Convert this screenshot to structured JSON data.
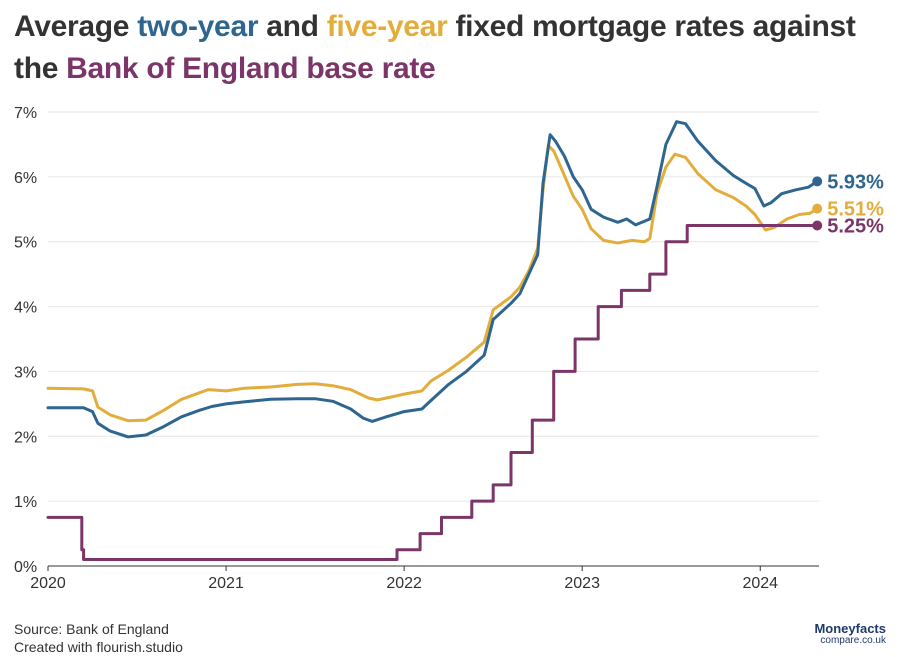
{
  "title": {
    "part1": "Average ",
    "two_year": "two-year",
    "part2": " and ",
    "five_year": "five-year",
    "part3": " fixed mortgage rates against the ",
    "base_rate": "Bank of England base rate"
  },
  "footer": {
    "source": "Source: Bank of England",
    "created": "Created with flourish.studio"
  },
  "logo": {
    "line1": "Moneyfacts",
    "line2": "compare.co.uk"
  },
  "colors": {
    "two_year": "#2e6690",
    "five_year": "#e2ad3c",
    "base_rate": "#7b3568",
    "grid": "#e6e6e6",
    "axis": "#333333"
  },
  "chart_data": {
    "type": "line",
    "xlim": [
      2020.0,
      2024.33
    ],
    "ylim": [
      0,
      7
    ],
    "x_ticks": [
      2020,
      2021,
      2022,
      2023,
      2024
    ],
    "x_tick_labels": [
      "2020",
      "2021",
      "2022",
      "2023",
      "2024"
    ],
    "y_ticks": [
      0,
      1,
      2,
      3,
      4,
      5,
      6,
      7
    ],
    "y_tick_labels": [
      "0%",
      "1%",
      "2%",
      "3%",
      "4%",
      "5%",
      "6%",
      "7%"
    ],
    "grid": "horizontal",
    "series": [
      {
        "key": "five_year",
        "end_label": "5.51%",
        "points": [
          [
            2020.0,
            2.74
          ],
          [
            2020.2,
            2.73
          ],
          [
            2020.25,
            2.7
          ],
          [
            2020.28,
            2.45
          ],
          [
            2020.35,
            2.33
          ],
          [
            2020.45,
            2.24
          ],
          [
            2020.55,
            2.25
          ],
          [
            2020.65,
            2.4
          ],
          [
            2020.75,
            2.57
          ],
          [
            2020.85,
            2.67
          ],
          [
            2020.9,
            2.72
          ],
          [
            2021.0,
            2.7
          ],
          [
            2021.1,
            2.74
          ],
          [
            2021.25,
            2.76
          ],
          [
            2021.4,
            2.8
          ],
          [
            2021.5,
            2.81
          ],
          [
            2021.6,
            2.78
          ],
          [
            2021.7,
            2.72
          ],
          [
            2021.8,
            2.59
          ],
          [
            2021.85,
            2.56
          ],
          [
            2021.95,
            2.62
          ],
          [
            2022.0,
            2.65
          ],
          [
            2022.1,
            2.7
          ],
          [
            2022.15,
            2.85
          ],
          [
            2022.25,
            3.02
          ],
          [
            2022.35,
            3.22
          ],
          [
            2022.45,
            3.45
          ],
          [
            2022.5,
            3.95
          ],
          [
            2022.6,
            4.15
          ],
          [
            2022.65,
            4.3
          ],
          [
            2022.7,
            4.55
          ],
          [
            2022.75,
            4.9
          ],
          [
            2022.78,
            5.8
          ],
          [
            2022.81,
            6.48
          ],
          [
            2022.84,
            6.4
          ],
          [
            2022.88,
            6.15
          ],
          [
            2022.95,
            5.7
          ],
          [
            2023.0,
            5.5
          ],
          [
            2023.05,
            5.2
          ],
          [
            2023.12,
            5.02
          ],
          [
            2023.2,
            4.98
          ],
          [
            2023.28,
            5.02
          ],
          [
            2023.35,
            5.0
          ],
          [
            2023.38,
            5.05
          ],
          [
            2023.42,
            5.75
          ],
          [
            2023.47,
            6.15
          ],
          [
            2023.52,
            6.35
          ],
          [
            2023.58,
            6.3
          ],
          [
            2023.65,
            6.05
          ],
          [
            2023.75,
            5.8
          ],
          [
            2023.85,
            5.68
          ],
          [
            2023.92,
            5.55
          ],
          [
            2023.97,
            5.42
          ],
          [
            2024.03,
            5.18
          ],
          [
            2024.08,
            5.22
          ],
          [
            2024.15,
            5.35
          ],
          [
            2024.22,
            5.42
          ],
          [
            2024.28,
            5.44
          ],
          [
            2024.32,
            5.51
          ]
        ]
      },
      {
        "key": "two_year",
        "end_label": "5.93%",
        "points": [
          [
            2020.0,
            2.44
          ],
          [
            2020.2,
            2.44
          ],
          [
            2020.25,
            2.38
          ],
          [
            2020.28,
            2.2
          ],
          [
            2020.35,
            2.08
          ],
          [
            2020.45,
            1.99
          ],
          [
            2020.55,
            2.02
          ],
          [
            2020.65,
            2.15
          ],
          [
            2020.75,
            2.3
          ],
          [
            2020.85,
            2.4
          ],
          [
            2020.92,
            2.46
          ],
          [
            2021.0,
            2.5
          ],
          [
            2021.1,
            2.53
          ],
          [
            2021.25,
            2.57
          ],
          [
            2021.4,
            2.58
          ],
          [
            2021.5,
            2.58
          ],
          [
            2021.6,
            2.54
          ],
          [
            2021.7,
            2.42
          ],
          [
            2021.77,
            2.28
          ],
          [
            2021.82,
            2.23
          ],
          [
            2021.9,
            2.3
          ],
          [
            2022.0,
            2.38
          ],
          [
            2022.1,
            2.42
          ],
          [
            2022.15,
            2.55
          ],
          [
            2022.25,
            2.8
          ],
          [
            2022.35,
            3.0
          ],
          [
            2022.45,
            3.25
          ],
          [
            2022.5,
            3.8
          ],
          [
            2022.6,
            4.05
          ],
          [
            2022.65,
            4.2
          ],
          [
            2022.7,
            4.5
          ],
          [
            2022.75,
            4.8
          ],
          [
            2022.78,
            5.9
          ],
          [
            2022.82,
            6.65
          ],
          [
            2022.85,
            6.55
          ],
          [
            2022.9,
            6.32
          ],
          [
            2022.95,
            6.0
          ],
          [
            2023.0,
            5.8
          ],
          [
            2023.05,
            5.5
          ],
          [
            2023.12,
            5.38
          ],
          [
            2023.2,
            5.3
          ],
          [
            2023.25,
            5.35
          ],
          [
            2023.3,
            5.26
          ],
          [
            2023.38,
            5.35
          ],
          [
            2023.42,
            5.85
          ],
          [
            2023.47,
            6.5
          ],
          [
            2023.53,
            6.85
          ],
          [
            2023.58,
            6.82
          ],
          [
            2023.65,
            6.55
          ],
          [
            2023.75,
            6.25
          ],
          [
            2023.85,
            6.02
          ],
          [
            2023.92,
            5.9
          ],
          [
            2023.97,
            5.82
          ],
          [
            2024.02,
            5.55
          ],
          [
            2024.06,
            5.6
          ],
          [
            2024.12,
            5.74
          ],
          [
            2024.2,
            5.8
          ],
          [
            2024.27,
            5.84
          ],
          [
            2024.32,
            5.93
          ]
        ]
      },
      {
        "key": "base_rate",
        "end_label": "5.25%",
        "step": true,
        "points": [
          [
            2020.0,
            0.75
          ],
          [
            2020.19,
            0.25
          ],
          [
            2020.2,
            0.1
          ],
          [
            2021.96,
            0.25
          ],
          [
            2022.09,
            0.5
          ],
          [
            2022.21,
            0.75
          ],
          [
            2022.38,
            1.0
          ],
          [
            2022.5,
            1.25
          ],
          [
            2022.6,
            1.75
          ],
          [
            2022.72,
            2.25
          ],
          [
            2022.84,
            3.0
          ],
          [
            2022.96,
            3.5
          ],
          [
            2023.09,
            4.0
          ],
          [
            2023.22,
            4.25
          ],
          [
            2023.38,
            4.5
          ],
          [
            2023.47,
            5.0
          ],
          [
            2023.59,
            5.25
          ],
          [
            2024.32,
            5.25
          ]
        ]
      }
    ]
  }
}
